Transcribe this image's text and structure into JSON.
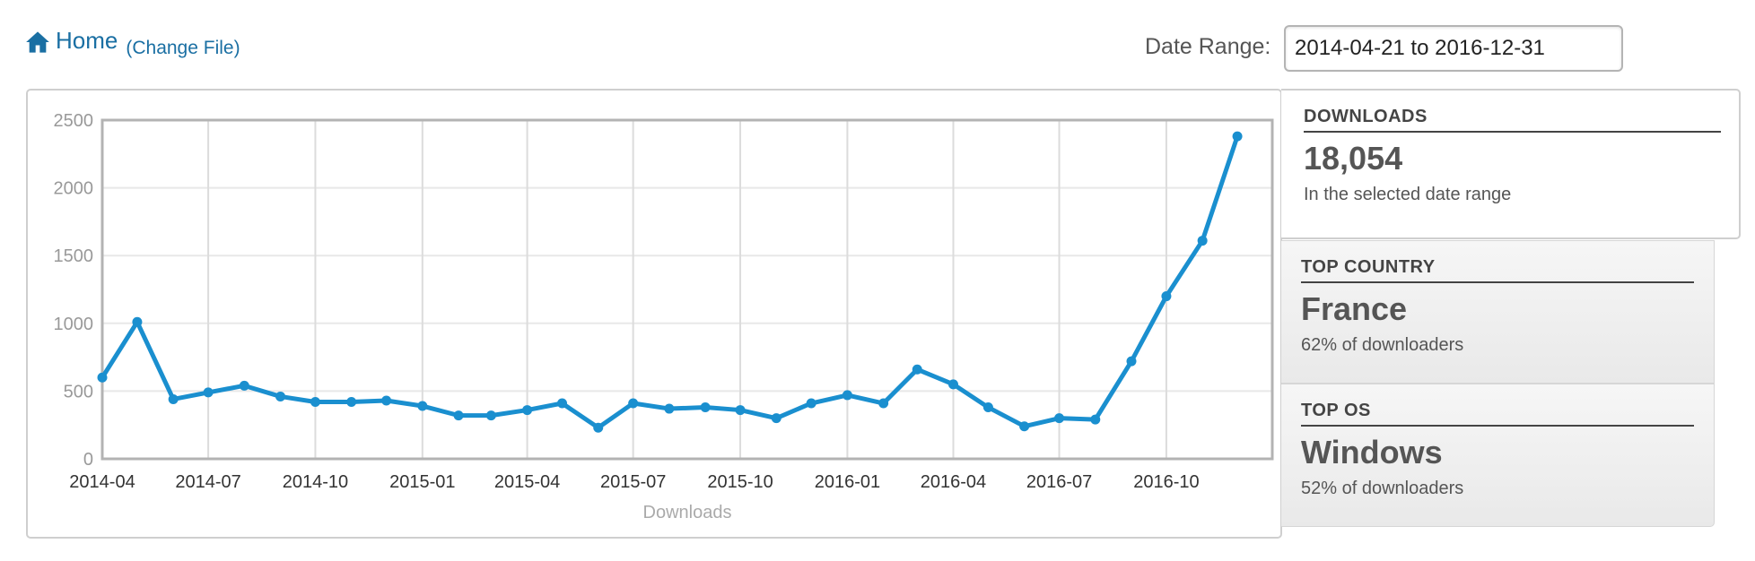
{
  "header": {
    "home_label": "Home",
    "change_file_label": "(Change File)",
    "home_icon": "home-icon",
    "accent": "#1a6fa3"
  },
  "date_range": {
    "label": "Date Range:",
    "value": "2014-04-21 to 2016-12-31"
  },
  "stats": {
    "downloads": {
      "heading": "DOWNLOADS",
      "value": "18,054",
      "sub": "In the selected date range"
    },
    "country": {
      "heading": "TOP COUNTRY",
      "value": "France",
      "sub": "62% of downloaders"
    },
    "os": {
      "heading": "TOP OS",
      "value": "Windows",
      "sub": "52% of downloaders"
    }
  },
  "chart_data": {
    "type": "line",
    "xlabel": "Downloads",
    "ylabel": "",
    "title": "",
    "ylim": [
      0,
      2500
    ],
    "yticks": [
      0,
      500,
      1000,
      1500,
      2000,
      2500
    ],
    "xlim": [
      "2014-04-01",
      "2016-12-31"
    ],
    "xticks": [
      "2014-04",
      "2014-07",
      "2014-10",
      "2015-01",
      "2015-04",
      "2015-07",
      "2015-10",
      "2016-01",
      "2016-04",
      "2016-07",
      "2016-10"
    ],
    "grid": true,
    "line_color": "#1a8fcf",
    "series": [
      {
        "x": [
          "2014-04-01",
          "2014-05-01",
          "2014-06-01",
          "2014-07-01",
          "2014-08-01",
          "2014-09-01",
          "2014-10-01",
          "2014-11-01",
          "2014-12-01",
          "2015-01-01",
          "2015-02-01",
          "2015-03-01",
          "2015-04-01",
          "2015-05-01",
          "2015-06-01",
          "2015-07-01",
          "2015-08-01",
          "2015-09-01",
          "2015-10-01",
          "2015-11-01",
          "2015-12-01",
          "2016-01-01",
          "2016-02-01",
          "2016-03-01",
          "2016-04-01",
          "2016-05-01",
          "2016-06-01",
          "2016-07-01",
          "2016-08-01",
          "2016-09-01",
          "2016-10-01",
          "2016-11-01",
          "2016-12-01"
        ],
        "values": [
          600,
          1010,
          440,
          490,
          540,
          460,
          420,
          420,
          430,
          390,
          320,
          320,
          360,
          410,
          230,
          410,
          370,
          380,
          360,
          300,
          410,
          470,
          410,
          660,
          550,
          380,
          240,
          300,
          290,
          720,
          1200,
          1610,
          2380
        ]
      }
    ]
  }
}
